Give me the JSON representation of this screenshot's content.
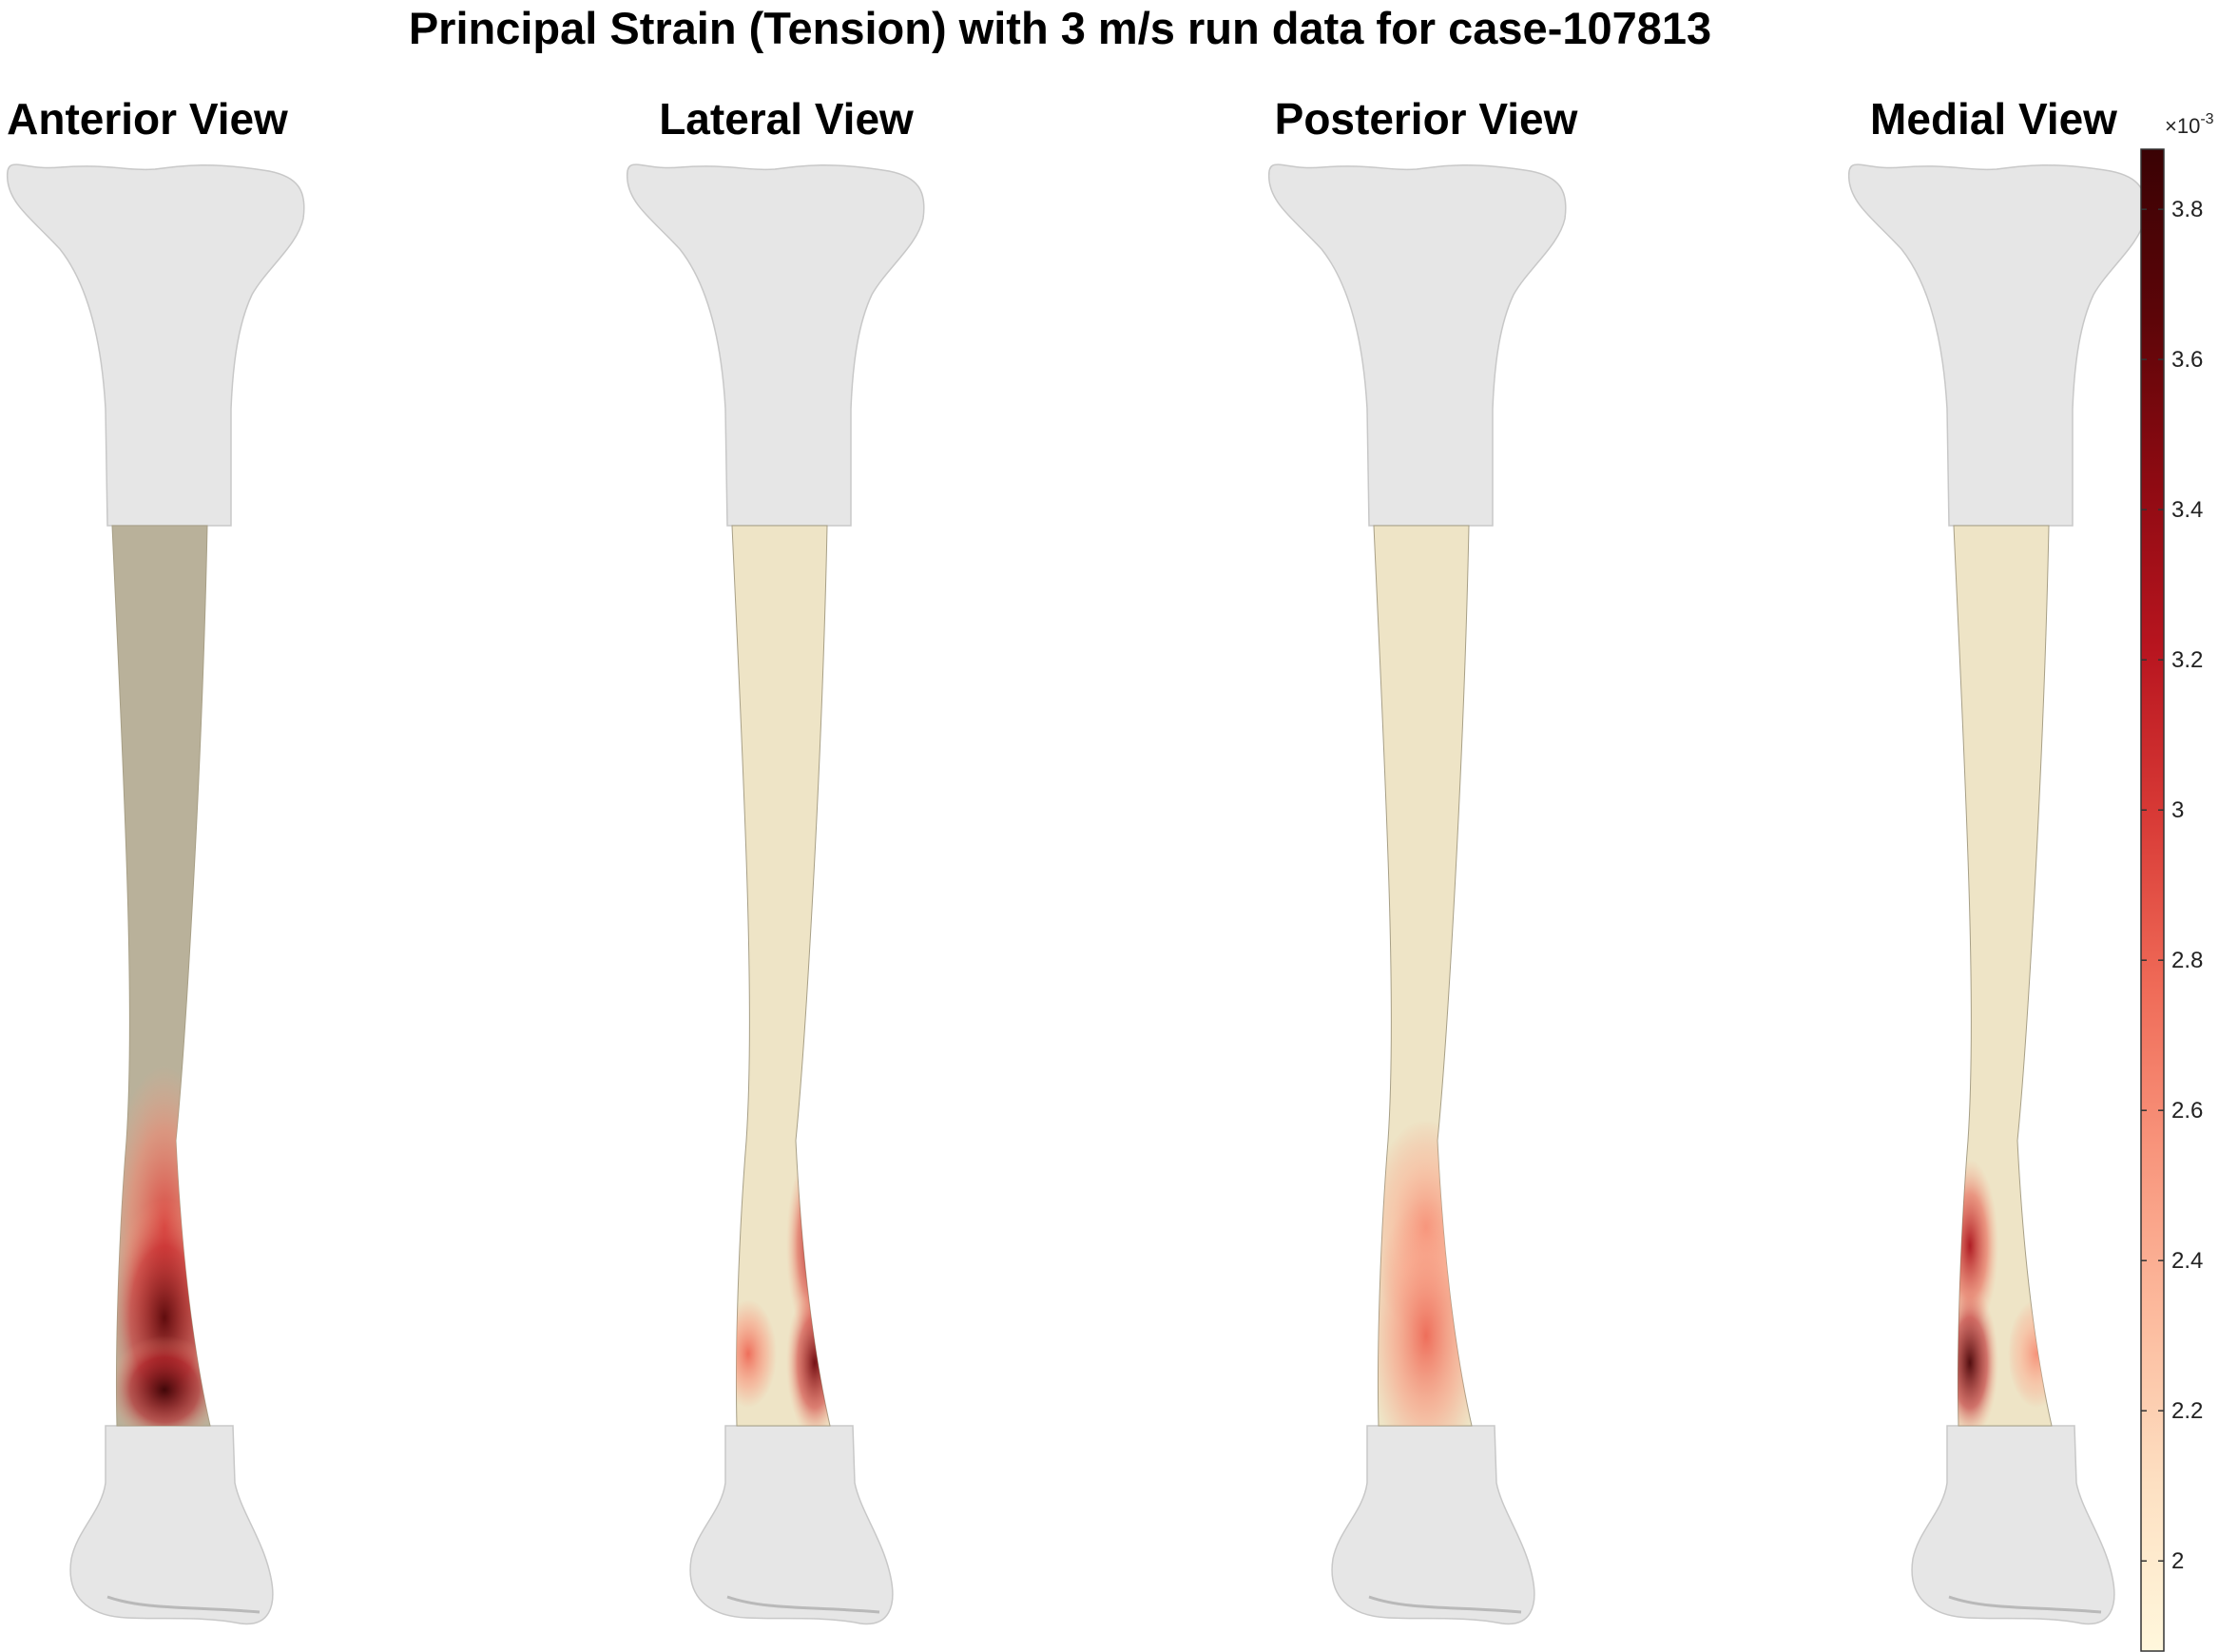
{
  "figure": {
    "title": "Principal Strain (Tension) with 3 m/s run data for case-107813",
    "views": [
      {
        "label": "Anterior View",
        "shade": "#b9b19a",
        "hotspots": [
          {
            "y": 0.78,
            "r": 0.3,
            "intensity": 0.55
          },
          {
            "y": 0.88,
            "r": 0.22,
            "intensity": 0.9
          },
          {
            "y": 0.96,
            "r": 0.1,
            "intensity": 1.0
          }
        ]
      },
      {
        "label": "Lateral View",
        "shade": "#eee4c6",
        "hotspots": [
          {
            "y": 0.8,
            "r": 0.18,
            "intensity": 0.75,
            "side": "right"
          },
          {
            "y": 0.93,
            "r": 0.14,
            "intensity": 0.85,
            "side": "right"
          },
          {
            "y": 0.92,
            "r": 0.1,
            "intensity": 0.45,
            "side": "left"
          }
        ]
      },
      {
        "label": "Posterior View",
        "shade": "#eee4c6",
        "hotspots": [
          {
            "y": 0.78,
            "r": 0.2,
            "intensity": 0.35
          },
          {
            "y": 0.9,
            "r": 0.25,
            "intensity": 0.45
          }
        ]
      },
      {
        "label": "Medial View",
        "shade": "#eee4c6",
        "hotspots": [
          {
            "y": 0.8,
            "r": 0.16,
            "intensity": 0.7,
            "side": "left"
          },
          {
            "y": 0.93,
            "r": 0.14,
            "intensity": 0.95,
            "side": "left"
          },
          {
            "y": 0.92,
            "r": 0.1,
            "intensity": 0.35,
            "side": "right"
          }
        ]
      }
    ]
  },
  "colorbar": {
    "exponent_label": "×10",
    "exponent": "-3",
    "min": 1.88,
    "max": 3.88,
    "ticks": [
      2,
      2.2,
      2.4,
      2.6,
      2.8,
      3,
      3.2,
      3.4,
      3.6,
      3.8
    ],
    "tick_labels": [
      "2",
      "2.2",
      "2.4",
      "2.6",
      "2.8",
      "3",
      "3.2",
      "3.4",
      "3.6",
      "3.8"
    ],
    "colormap": [
      "#fff7dc",
      "#fde0c2",
      "#fcbb9e",
      "#f8957c",
      "#ef6a57",
      "#d83a36",
      "#b8151f",
      "#8e0a12",
      "#5c0508",
      "#3a0204"
    ]
  },
  "colors": {
    "bone": "#e6e6e6",
    "bone_outline": "#c8c8c8"
  }
}
